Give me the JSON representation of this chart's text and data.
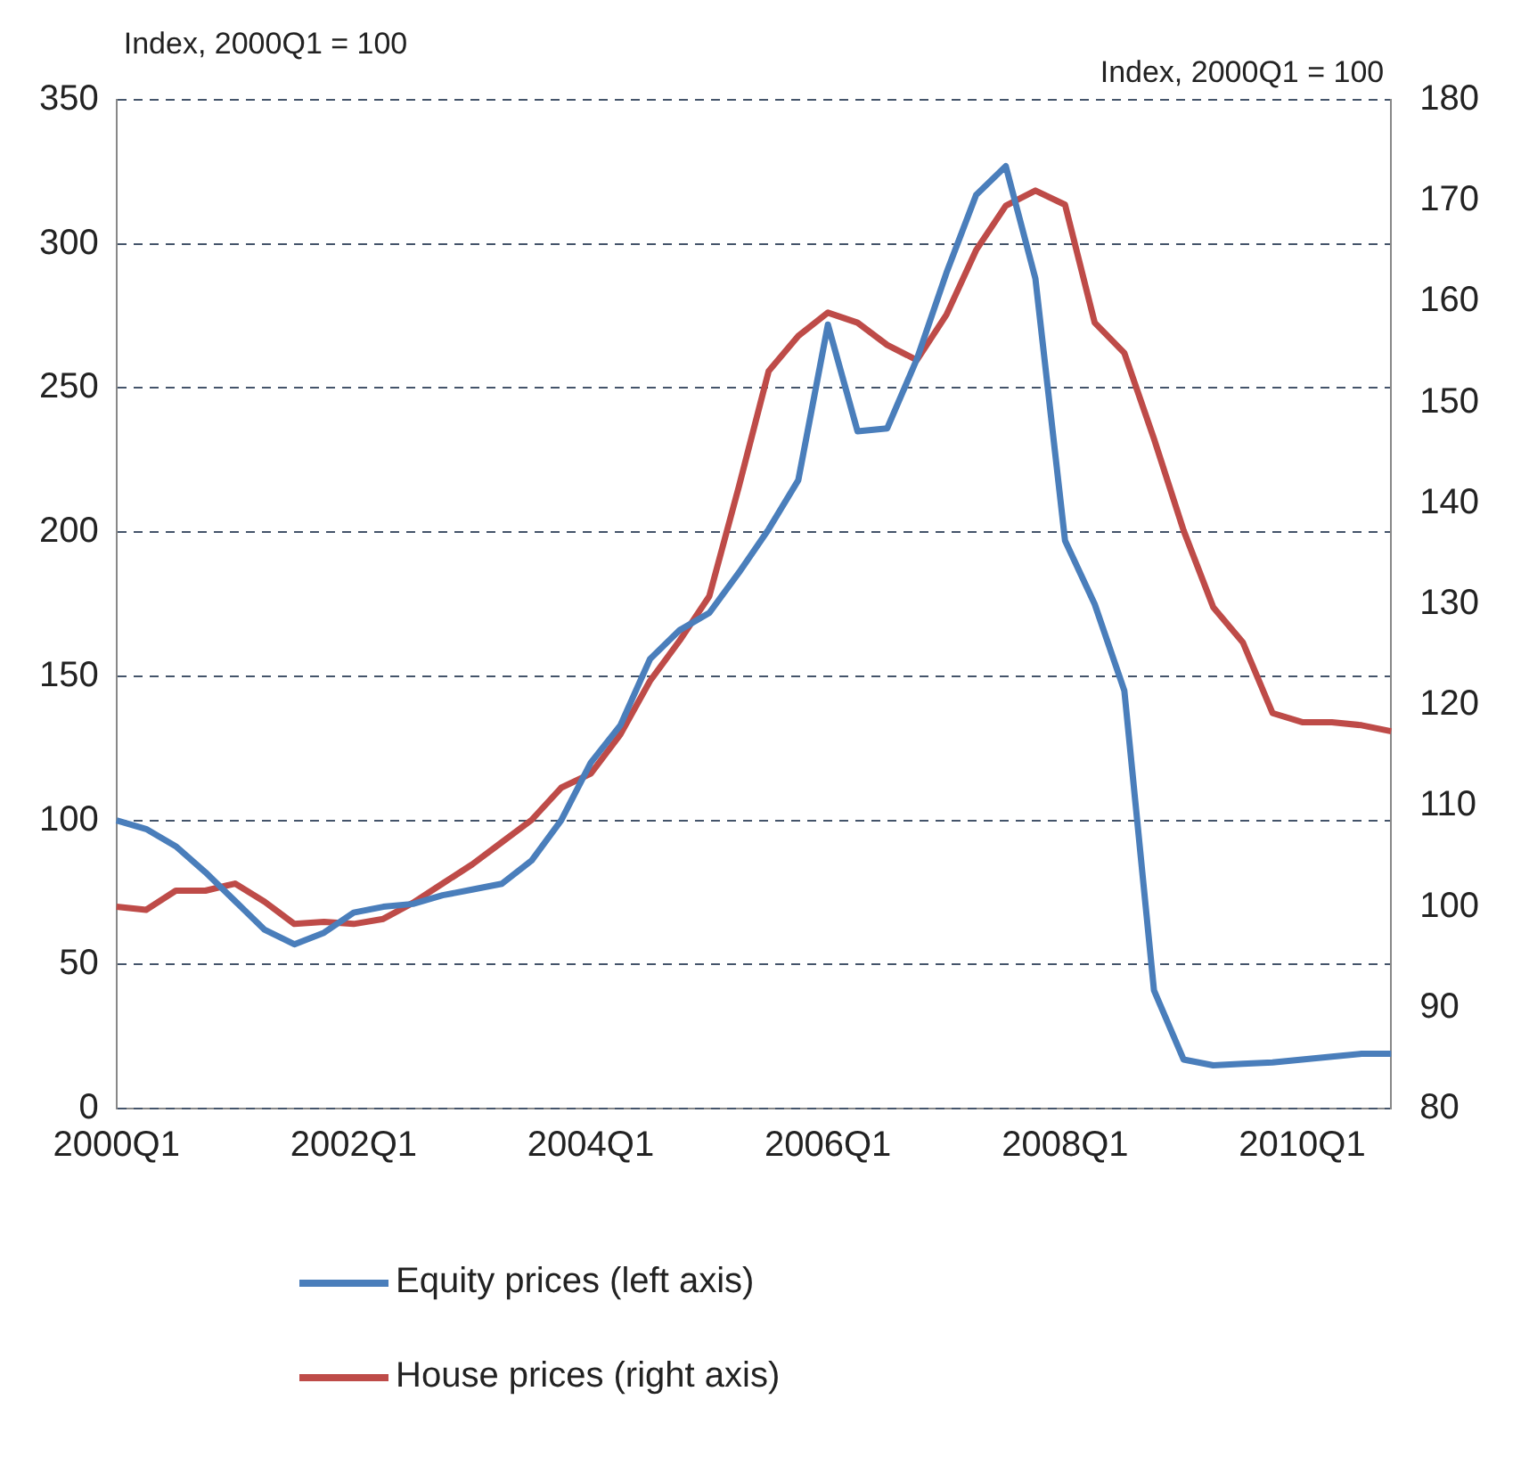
{
  "chart_data": {
    "type": "line",
    "ylabel": "Index, 2000Q1 = 100",
    "y2label": "Index, 2000Q1 = 100",
    "categories": [
      "2000Q1",
      null,
      null,
      null,
      null,
      null,
      null,
      null,
      "2002Q1",
      null,
      null,
      null,
      null,
      null,
      null,
      null,
      "2004Q1",
      null,
      null,
      null,
      null,
      null,
      null,
      null,
      "2006Q1",
      null,
      null,
      null,
      null,
      null,
      null,
      null,
      "2008Q1",
      null,
      null,
      null,
      null,
      null,
      null,
      null,
      "2010Q1",
      null,
      null,
      null
    ],
    "series": [
      {
        "name": "Equity prices (left axis)",
        "color": "#4a7ebb",
        "values": [
          100,
          97,
          91,
          82,
          72,
          62,
          57,
          61,
          68,
          70,
          71,
          74,
          76,
          78,
          86,
          100,
          120,
          133,
          156,
          166,
          172,
          186,
          201,
          218,
          272,
          235,
          236,
          260,
          290,
          317,
          327,
          288,
          197,
          175,
          145,
          41,
          17,
          15,
          15.5,
          16,
          17,
          18,
          19,
          19
        ]
      },
      {
        "name": "House prices (right axis)",
        "color": "#be4b48",
        "axis": "y2",
        "values": [
          100,
          99.7,
          101.6,
          101.6,
          102.3,
          100.5,
          98.3,
          98.5,
          98.3,
          98.8,
          100.4,
          102.3,
          104.2,
          106.4,
          108.6,
          111.8,
          113.2,
          117.1,
          122.4,
          126.4,
          130.8,
          141.7,
          153.1,
          156.6,
          158.9,
          157.9,
          155.7,
          154.2,
          158.7,
          165.1,
          169.5,
          171,
          169.6,
          157.9,
          154.9,
          146.4,
          137.3,
          129.7,
          126.2,
          119.2,
          118.3,
          118.3,
          118,
          117.4
        ]
      }
    ],
    "ylim": [
      0,
      350
    ],
    "yticks": [
      0,
      50,
      100,
      150,
      200,
      250,
      300,
      350
    ],
    "y2lim": [
      80,
      180
    ],
    "y2ticks": [
      80,
      90,
      100,
      110,
      120,
      130,
      140,
      150,
      160,
      170,
      180
    ],
    "grid": "y",
    "legend": "bottom",
    "marker": "none",
    "line_style": "solid"
  }
}
